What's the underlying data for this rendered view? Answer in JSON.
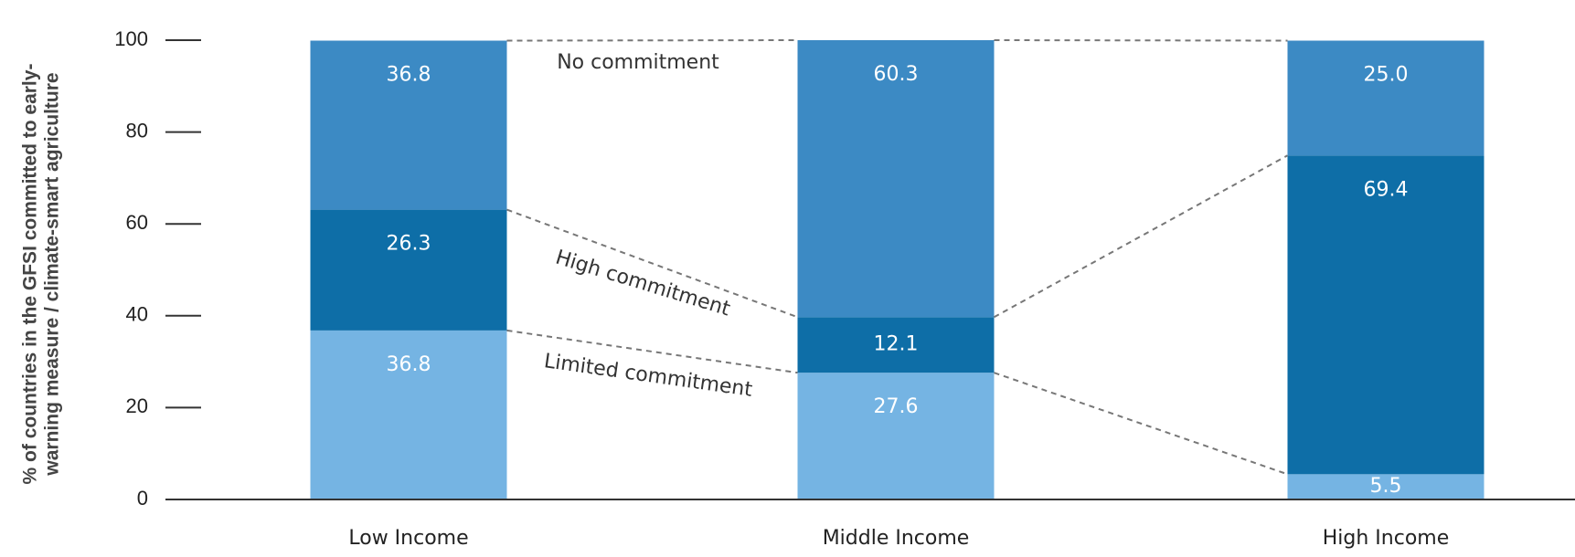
{
  "chart_data": {
    "type": "stacked_bar",
    "y_label": [
      "% of countries in the GFSI committed to early-",
      "warning measure / climate-smart agriculture"
    ],
    "categories": [
      "Low Income",
      "Middle Income",
      "High Income"
    ],
    "series": [
      {
        "name": "Limited commitment",
        "color": "#75b4e3",
        "values": [
          36.8,
          27.6,
          5.5
        ],
        "value_labels": [
          "36.8",
          "27.6",
          "5.5"
        ]
      },
      {
        "name": "High commitment",
        "color": "#0e6ea7",
        "values": [
          26.3,
          12.1,
          69.4
        ],
        "value_labels": [
          "26.3",
          "12.1",
          "69.4"
        ]
      },
      {
        "name": "No commitment",
        "color": "#3c8ac4",
        "values": [
          36.8,
          60.3,
          25.0
        ],
        "value_labels": [
          "36.8",
          "60.3",
          "25.0"
        ]
      }
    ],
    "ylim": [
      0,
      100
    ],
    "yticks": [
      0,
      20,
      40,
      60,
      80,
      100
    ]
  }
}
